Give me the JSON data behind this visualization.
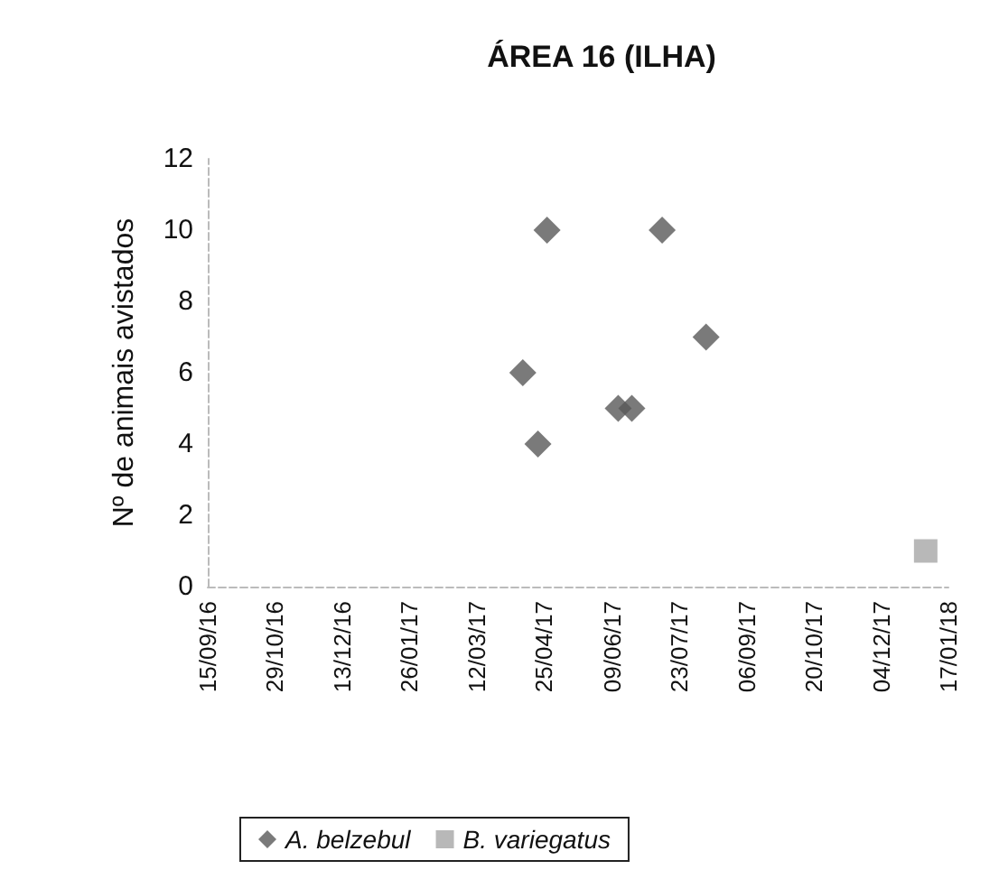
{
  "chart_data": {
    "type": "scatter",
    "title": "ÁREA 16 (ILHA)",
    "ylabel": "Nº de animais avistados",
    "series": [
      {
        "name": "A. belzebul",
        "color": "#595959",
        "marker": "diamond",
        "x": [
          "2017-04-11",
          "2017-04-21",
          "2017-04-27",
          "2017-06-13",
          "2017-06-22",
          "2017-07-12",
          "2017-08-10"
        ],
        "values": [
          6,
          4,
          10,
          5,
          5,
          10,
          7
        ]
      },
      {
        "name": "B. variegatus",
        "color": "#a6a6a6",
        "marker": "square",
        "x": [
          "2018-01-02"
        ],
        "values": [
          1
        ]
      }
    ],
    "xlim": [
      "2016-09-15",
      "2018-01-17"
    ],
    "xticks": [
      {
        "value": "2016-09-15",
        "label": "15/09/16"
      },
      {
        "value": "2016-10-29",
        "label": "29/10/16"
      },
      {
        "value": "2016-12-13",
        "label": "13/12/16"
      },
      {
        "value": "2017-01-26",
        "label": "26/01/17"
      },
      {
        "value": "2017-03-12",
        "label": "12/03/17"
      },
      {
        "value": "2017-04-25",
        "label": "25/04/17"
      },
      {
        "value": "2017-06-09",
        "label": "09/06/17"
      },
      {
        "value": "2017-07-23",
        "label": "23/07/17"
      },
      {
        "value": "2017-09-06",
        "label": "06/09/17"
      },
      {
        "value": "2017-10-20",
        "label": "20/10/17"
      },
      {
        "value": "2017-12-04",
        "label": "04/12/17"
      },
      {
        "value": "2018-01-17",
        "label": "17/01/18"
      }
    ],
    "ylim": [
      0,
      12
    ],
    "yticks": [
      0,
      2,
      4,
      6,
      8,
      10,
      12
    ],
    "grid": false,
    "legend": "bottom"
  }
}
